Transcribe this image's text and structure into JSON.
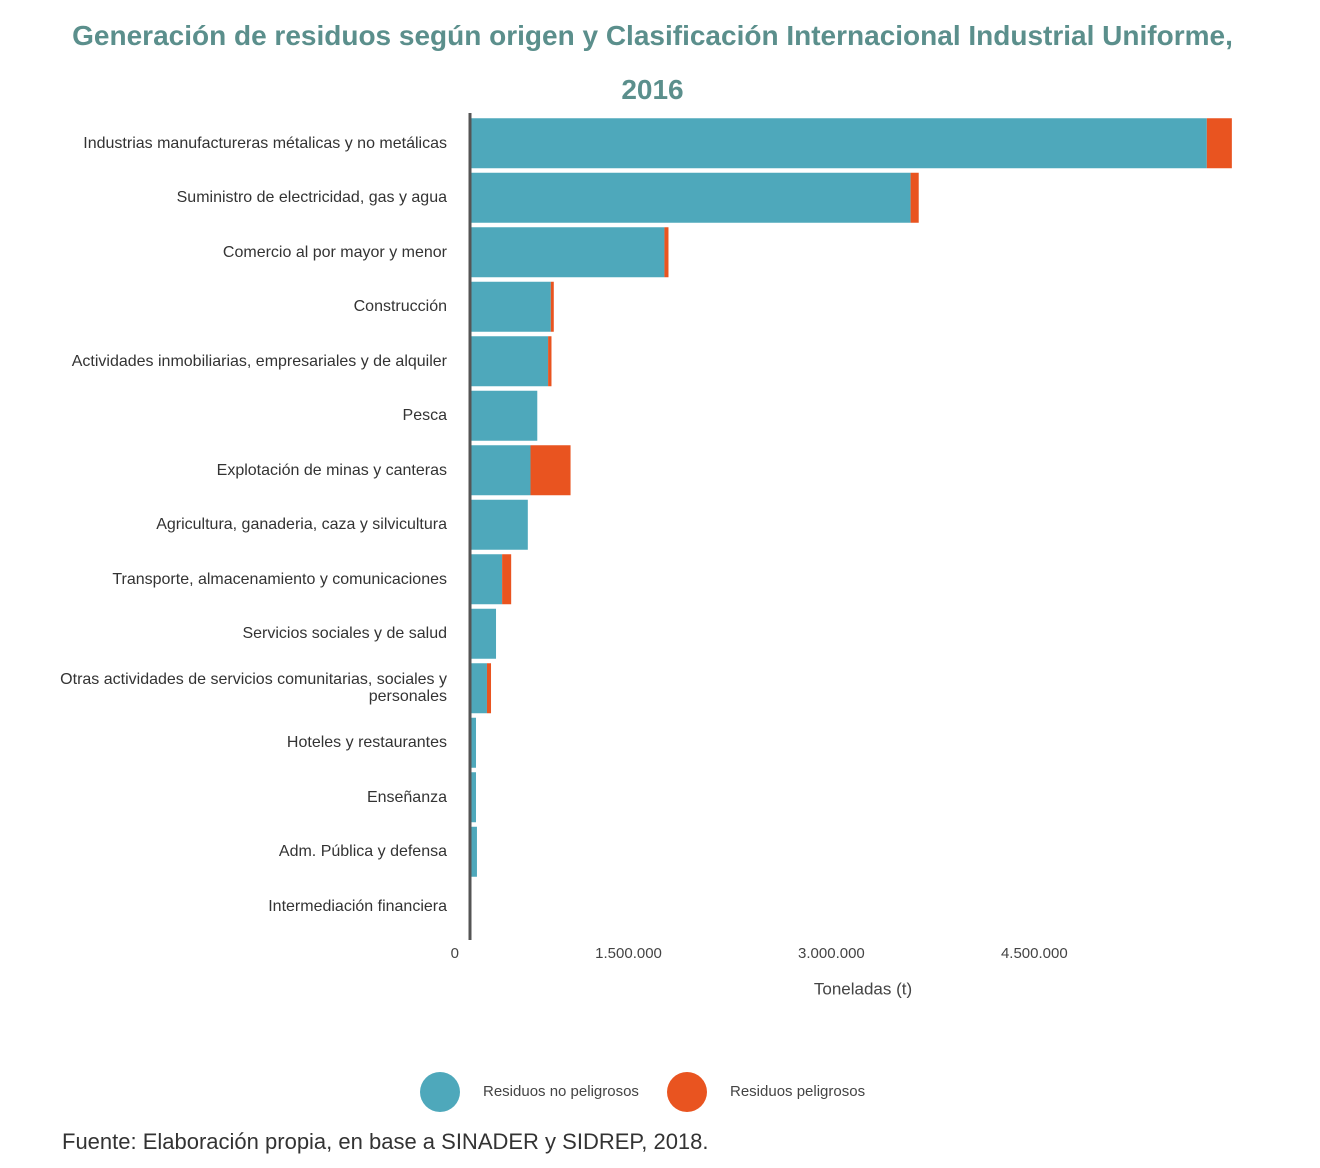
{
  "chart_data": {
    "type": "stacked-barh",
    "title": "Generación de residuos según origen y Clasificación Internacional  Industrial Uniforme, 2016",
    "categories": [
      "Industrias manufactureras métalicas y no metálicas",
      "Suministro de electricidad, gas y agua",
      "Comercio al por mayor y menor",
      "Construcción",
      "Actividades inmobiliarias, empresariales y de alquiler",
      "Pesca",
      "Explotación de minas y canteras",
      "Agricultura, ganaderia, caza y silvicultura",
      "Transporte, almacenamiento y comunicaciones",
      "Servicios sociales y de salud",
      "Otras actividades de servicios comunitarias, sociales y personales",
      "Hoteles y restaurantes",
      "Enseñanza",
      "Adm. Pública y defensa",
      "Intermediación financiera"
    ],
    "series": [
      {
        "name": "Residuos no peligrosos",
        "color": "#4ea8bb",
        "values": [
          5440000,
          3250000,
          1430000,
          590000,
          570000,
          490000,
          440000,
          420000,
          230000,
          185000,
          118000,
          37000,
          37000,
          44000,
          2000
        ]
      },
      {
        "name": "Residuos peligrosos",
        "color": "#e95420",
        "values": [
          185000,
          60000,
          30000,
          22000,
          25000,
          0,
          296000,
          0,
          67000,
          0,
          30000,
          0,
          0,
          0,
          0
        ]
      }
    ],
    "xlim": [
      0,
      5700000
    ],
    "xticks": [
      0,
      {
        "value": 1500000,
        "label": "1.500.000"
      },
      {
        "value": 3000000,
        "label": "3.000.000"
      },
      {
        "value": 4500000,
        "label": "4.500.000"
      }
    ],
    "xlabel": "Toneladas (t)",
    "legend": "bottom",
    "source": "Fuente: Elaboración propia, en base a SINADER y SIDREP, 2018."
  }
}
